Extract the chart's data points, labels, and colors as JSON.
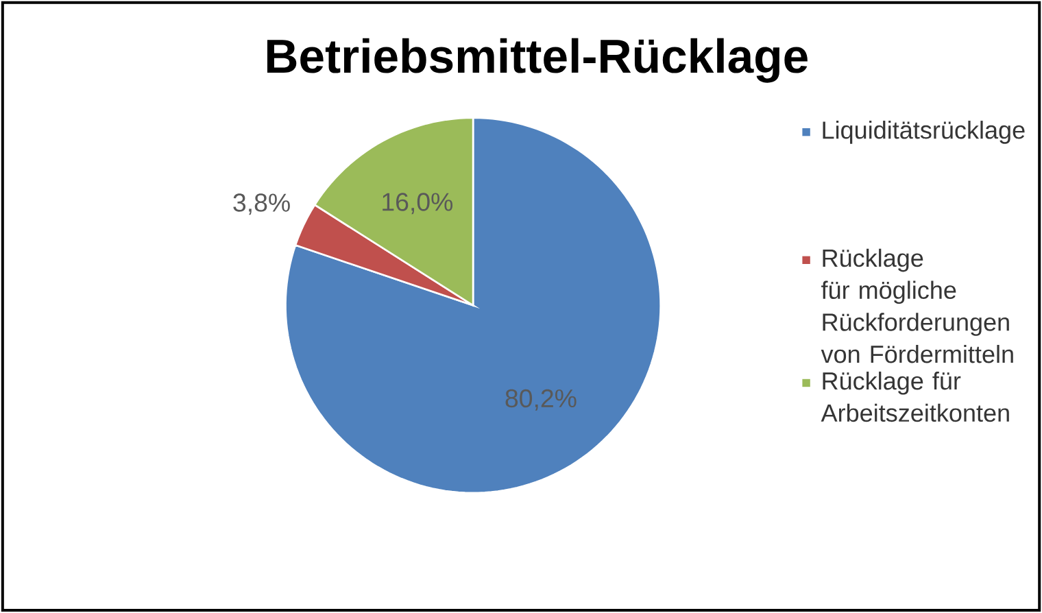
{
  "chart_data": {
    "type": "pie",
    "title": "Betriebsmittel-Rücklage",
    "categories": [
      "Liquiditätsrücklage",
      "Rücklage für mögliche Rückforderungen von Fördermitteln",
      "Rücklage für Arbeitszeitkonten"
    ],
    "values": [
      80.2,
      3.8,
      16.0
    ],
    "value_labels": [
      "80,2%",
      "3,8%",
      "16,0%"
    ],
    "colors": [
      "#4f81bd",
      "#c0504d",
      "#9bbb59"
    ],
    "legend": "right"
  }
}
